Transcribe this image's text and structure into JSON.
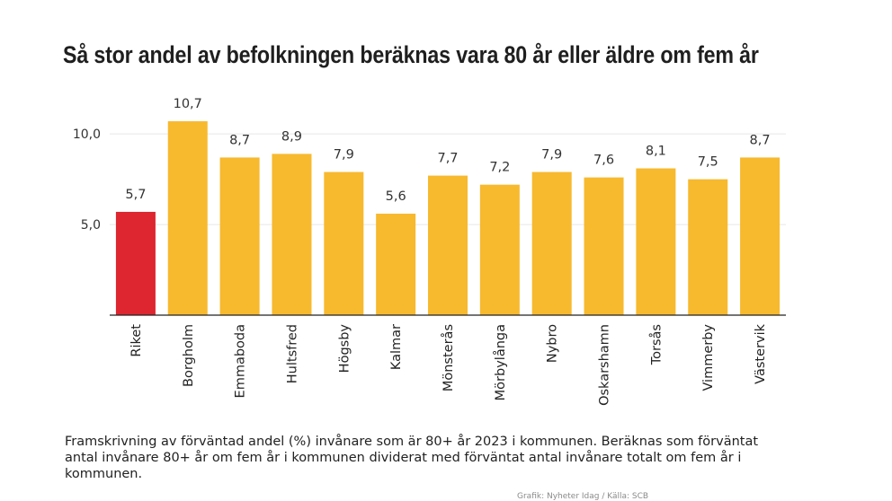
{
  "title": "Så stor andel av befolkningen beräknas vara 80 år eller äldre om fem år",
  "note": "Framskrivning av förväntad andel (%) invånare som är 80+ år 2023 i kommunen. Beräknas som förväntat antal invånare 80+ år om fem år i kommunen dividerat med förväntat antal invånare totalt om fem år i kommunen.",
  "credit": "Grafik: Nyheter Idag / Källa: SCB",
  "colors": {
    "highlight": "#dd2630",
    "bar": "#f7b92e",
    "gridline": "#e6e6e6",
    "axis": "#222222"
  },
  "chart_data": {
    "type": "bar",
    "title": "Så stor andel av befolkningen beräknas vara 80 år eller äldre om fem år",
    "xlabel": "",
    "ylabel": "",
    "categories": [
      "Riket",
      "Borgholm",
      "Emmaboda",
      "Hultsfred",
      "Högsby",
      "Kalmar",
      "Mönsterås",
      "Mörbylånga",
      "Nybro",
      "Oskarshamn",
      "Torsås",
      "Vimmerby",
      "Västervik"
    ],
    "values": [
      5.7,
      10.7,
      8.7,
      8.9,
      7.9,
      5.6,
      7.7,
      7.2,
      7.9,
      7.6,
      8.1,
      7.5,
      8.7
    ],
    "value_labels": [
      "5,7",
      "10,7",
      "8,7",
      "8,9",
      "7,9",
      "5,6",
      "7,7",
      "7,2",
      "7,9",
      "7,6",
      "8,1",
      "7,5",
      "8,7"
    ],
    "highlighted_category": "Riket",
    "ylim": [
      0,
      11
    ],
    "yticks": [
      5,
      10
    ],
    "ytick_labels": [
      "5,0",
      "10,0"
    ],
    "grid": true,
    "legend": "none"
  }
}
